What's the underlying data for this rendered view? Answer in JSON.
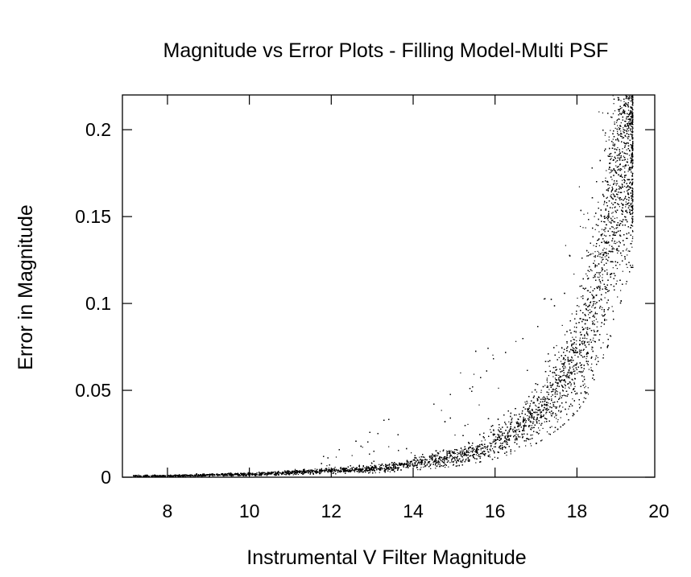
{
  "chart_data": {
    "type": "scatter",
    "title": "Magnitude vs Error Plots - Filling Model-Multi PSF",
    "xlabel": "Instrumental V Filter Magnitude",
    "ylabel": "Error in Magnitude",
    "xlim": [
      6.9,
      19.9
    ],
    "ylim": [
      0,
      0.22
    ],
    "xticks": [
      8,
      10,
      12,
      14,
      16,
      18,
      20
    ],
    "xtick_labels": [
      "8",
      "10",
      "12",
      "14",
      "16",
      "18",
      "20"
    ],
    "yticks": [
      0,
      0.05,
      0.1,
      0.15,
      0.2
    ],
    "ytick_labels": [
      "0",
      "0.05",
      "0.1",
      "0.15",
      "0.2"
    ],
    "grid": false,
    "legend": "none",
    "marker_color": "#000000",
    "series": [
      {
        "points_description_x": [
          7.2,
          8,
          9,
          10,
          11,
          12,
          13,
          14,
          15,
          16,
          16.5,
          17,
          17.5,
          18,
          18.3,
          18.6,
          18.9,
          19.1,
          19.3
        ],
        "points_description_y": [
          0.001,
          0.001,
          0.0015,
          0.002,
          0.003,
          0.004,
          0.005,
          0.008,
          0.012,
          0.02,
          0.027,
          0.036,
          0.05,
          0.07,
          0.09,
          0.12,
          0.16,
          0.19,
          0.22
        ]
      }
    ]
  }
}
